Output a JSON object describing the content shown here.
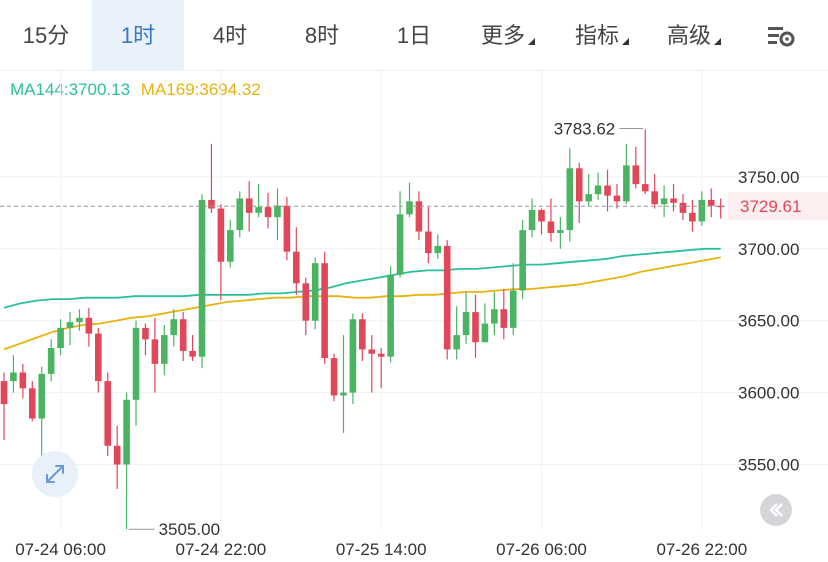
{
  "tabs": [
    {
      "label": "15分"
    },
    {
      "label": "1时"
    },
    {
      "label": "4时"
    },
    {
      "label": "8时"
    },
    {
      "label": "1日"
    },
    {
      "label": "更多"
    },
    {
      "label": "指标"
    },
    {
      "label": "高级"
    }
  ],
  "active_tab": "1时",
  "settings_icon": "chart-settings-icon",
  "legend": {
    "ma144": "MA144:3700.13",
    "ma169": "MA169:3694.32"
  },
  "colors": {
    "up": "#4bb463",
    "down": "#e0485a",
    "ma144": "#2bbf9d",
    "ma169": "#e8b20f",
    "active_tab": "#3a78c9"
  },
  "chart_data": {
    "type": "candlestick",
    "title": "",
    "ylim": [
      3510,
      3800
    ],
    "y_ticks": [
      "3750.00",
      "3700.00",
      "3650.00",
      "3600.00",
      "3550.00"
    ],
    "x_ticks": [
      "07-24 06:00",
      "07-24 22:00",
      "07-25 14:00",
      "07-26 06:00",
      "07-26 22:00"
    ],
    "last_price": "3729.61",
    "high_label": "3783.62",
    "low_label": "3505.00",
    "candles": [
      [
        3608,
        3592,
        3614,
        3567
      ],
      [
        3608,
        3614,
        3626,
        3600
      ],
      [
        3614,
        3603,
        3620,
        3596
      ],
      [
        3603,
        3582,
        3608,
        3580
      ],
      [
        3582,
        3613,
        3618,
        3552
      ],
      [
        3613,
        3631,
        3637,
        3608
      ],
      [
        3631,
        3645,
        3651,
        3626
      ],
      [
        3645,
        3649,
        3656,
        3633
      ],
      [
        3649,
        3652,
        3658,
        3643
      ],
      [
        3652,
        3641,
        3659,
        3632
      ],
      [
        3641,
        3608,
        3645,
        3600
      ],
      [
        3608,
        3563,
        3614,
        3556
      ],
      [
        3563,
        3550,
        3577,
        3533
      ],
      [
        3550,
        3595,
        3600,
        3505
      ],
      [
        3595,
        3645,
        3650,
        3577
      ],
      [
        3645,
        3637,
        3648,
        3626
      ],
      [
        3637,
        3620,
        3652,
        3600
      ],
      [
        3620,
        3640,
        3647,
        3612
      ],
      [
        3640,
        3651,
        3658,
        3632
      ],
      [
        3651,
        3629,
        3656,
        3622
      ],
      [
        3629,
        3625,
        3640,
        3622
      ],
      [
        3625,
        3734,
        3738,
        3617
      ],
      [
        3734,
        3728,
        3773,
        3725
      ],
      [
        3728,
        3691,
        3731,
        3664
      ],
      [
        3691,
        3713,
        3720,
        3687
      ],
      [
        3713,
        3735,
        3740,
        3708
      ],
      [
        3735,
        3725,
        3747,
        3712
      ],
      [
        3725,
        3729,
        3745,
        3722
      ],
      [
        3729,
        3722,
        3739,
        3714
      ],
      [
        3722,
        3730,
        3742,
        3706
      ],
      [
        3730,
        3698,
        3736,
        3692
      ],
      [
        3698,
        3676,
        3715,
        3668
      ],
      [
        3676,
        3650,
        3680,
        3640
      ],
      [
        3650,
        3690,
        3694,
        3644
      ],
      [
        3690,
        3624,
        3698,
        3620
      ],
      [
        3624,
        3598,
        3627,
        3594
      ],
      [
        3598,
        3600,
        3640,
        3572
      ],
      [
        3600,
        3651,
        3655,
        3592
      ],
      [
        3651,
        3630,
        3655,
        3622
      ],
      [
        3630,
        3627,
        3640,
        3600
      ],
      [
        3627,
        3625,
        3631,
        3603
      ],
      [
        3625,
        3682,
        3688,
        3621
      ],
      [
        3682,
        3724,
        3740,
        3680
      ],
      [
        3724,
        3733,
        3746,
        3722
      ],
      [
        3733,
        3712,
        3740,
        3706
      ],
      [
        3712,
        3697,
        3729,
        3690
      ],
      [
        3697,
        3702,
        3710,
        3693
      ],
      [
        3702,
        3630,
        3706,
        3623
      ],
      [
        3630,
        3640,
        3660,
        3623
      ],
      [
        3640,
        3656,
        3670,
        3634
      ],
      [
        3656,
        3635,
        3668,
        3624
      ],
      [
        3635,
        3648,
        3662,
        3640
      ],
      [
        3648,
        3658,
        3670,
        3640
      ],
      [
        3658,
        3645,
        3672,
        3637
      ],
      [
        3645,
        3671,
        3690,
        3640
      ],
      [
        3671,
        3713,
        3720,
        3665
      ],
      [
        3713,
        3727,
        3735,
        3708
      ],
      [
        3727,
        3719,
        3728,
        3710
      ],
      [
        3719,
        3711,
        3735,
        3705
      ],
      [
        3711,
        3713,
        3722,
        3700
      ],
      [
        3713,
        3756,
        3770,
        3705
      ],
      [
        3756,
        3733,
        3760,
        3718
      ],
      [
        3733,
        3738,
        3752,
        3730
      ],
      [
        3738,
        3744,
        3753,
        3734
      ],
      [
        3744,
        3737,
        3755,
        3726
      ],
      [
        3737,
        3733,
        3745,
        3728
      ],
      [
        3733,
        3758,
        3773,
        3731
      ],
      [
        3758,
        3745,
        3771,
        3742
      ],
      [
        3745,
        3740,
        3783,
        3738
      ],
      [
        3740,
        3731,
        3752,
        3728
      ],
      [
        3731,
        3735,
        3744,
        3722
      ],
      [
        3735,
        3732,
        3745,
        3726
      ],
      [
        3732,
        3725,
        3738,
        3720
      ],
      [
        3725,
        3719,
        3734,
        3712
      ],
      [
        3719,
        3734,
        3740,
        3716
      ],
      [
        3734,
        3730,
        3742,
        3722
      ],
      [
        3730,
        3729,
        3735,
        3721
      ]
    ],
    "ma144": [
      3659,
      3662,
      3664,
      3665,
      3665,
      3666,
      3666,
      3666,
      3667,
      3667,
      3667,
      3667,
      3668,
      3668,
      3668,
      3668,
      3669,
      3669,
      3670,
      3671,
      3673,
      3676,
      3678,
      3680,
      3682,
      3684,
      3685,
      3685,
      3686,
      3686,
      3687,
      3688,
      3689,
      3689,
      3690,
      3691,
      3692,
      3693,
      3695,
      3696,
      3697,
      3698,
      3699,
      3700,
      3700
    ],
    "ma169": [
      3630,
      3634,
      3638,
      3642,
      3645,
      3647,
      3648,
      3650,
      3652,
      3653,
      3655,
      3657,
      3659,
      3661,
      3663,
      3664,
      3665,
      3666,
      3666,
      3667,
      3667,
      3667,
      3666,
      3666,
      3667,
      3667,
      3668,
      3668,
      3669,
      3670,
      3670,
      3671,
      3672,
      3672,
      3673,
      3674,
      3675,
      3677,
      3679,
      3681,
      3684,
      3686,
      3688,
      3690,
      3692,
      3694
    ]
  }
}
